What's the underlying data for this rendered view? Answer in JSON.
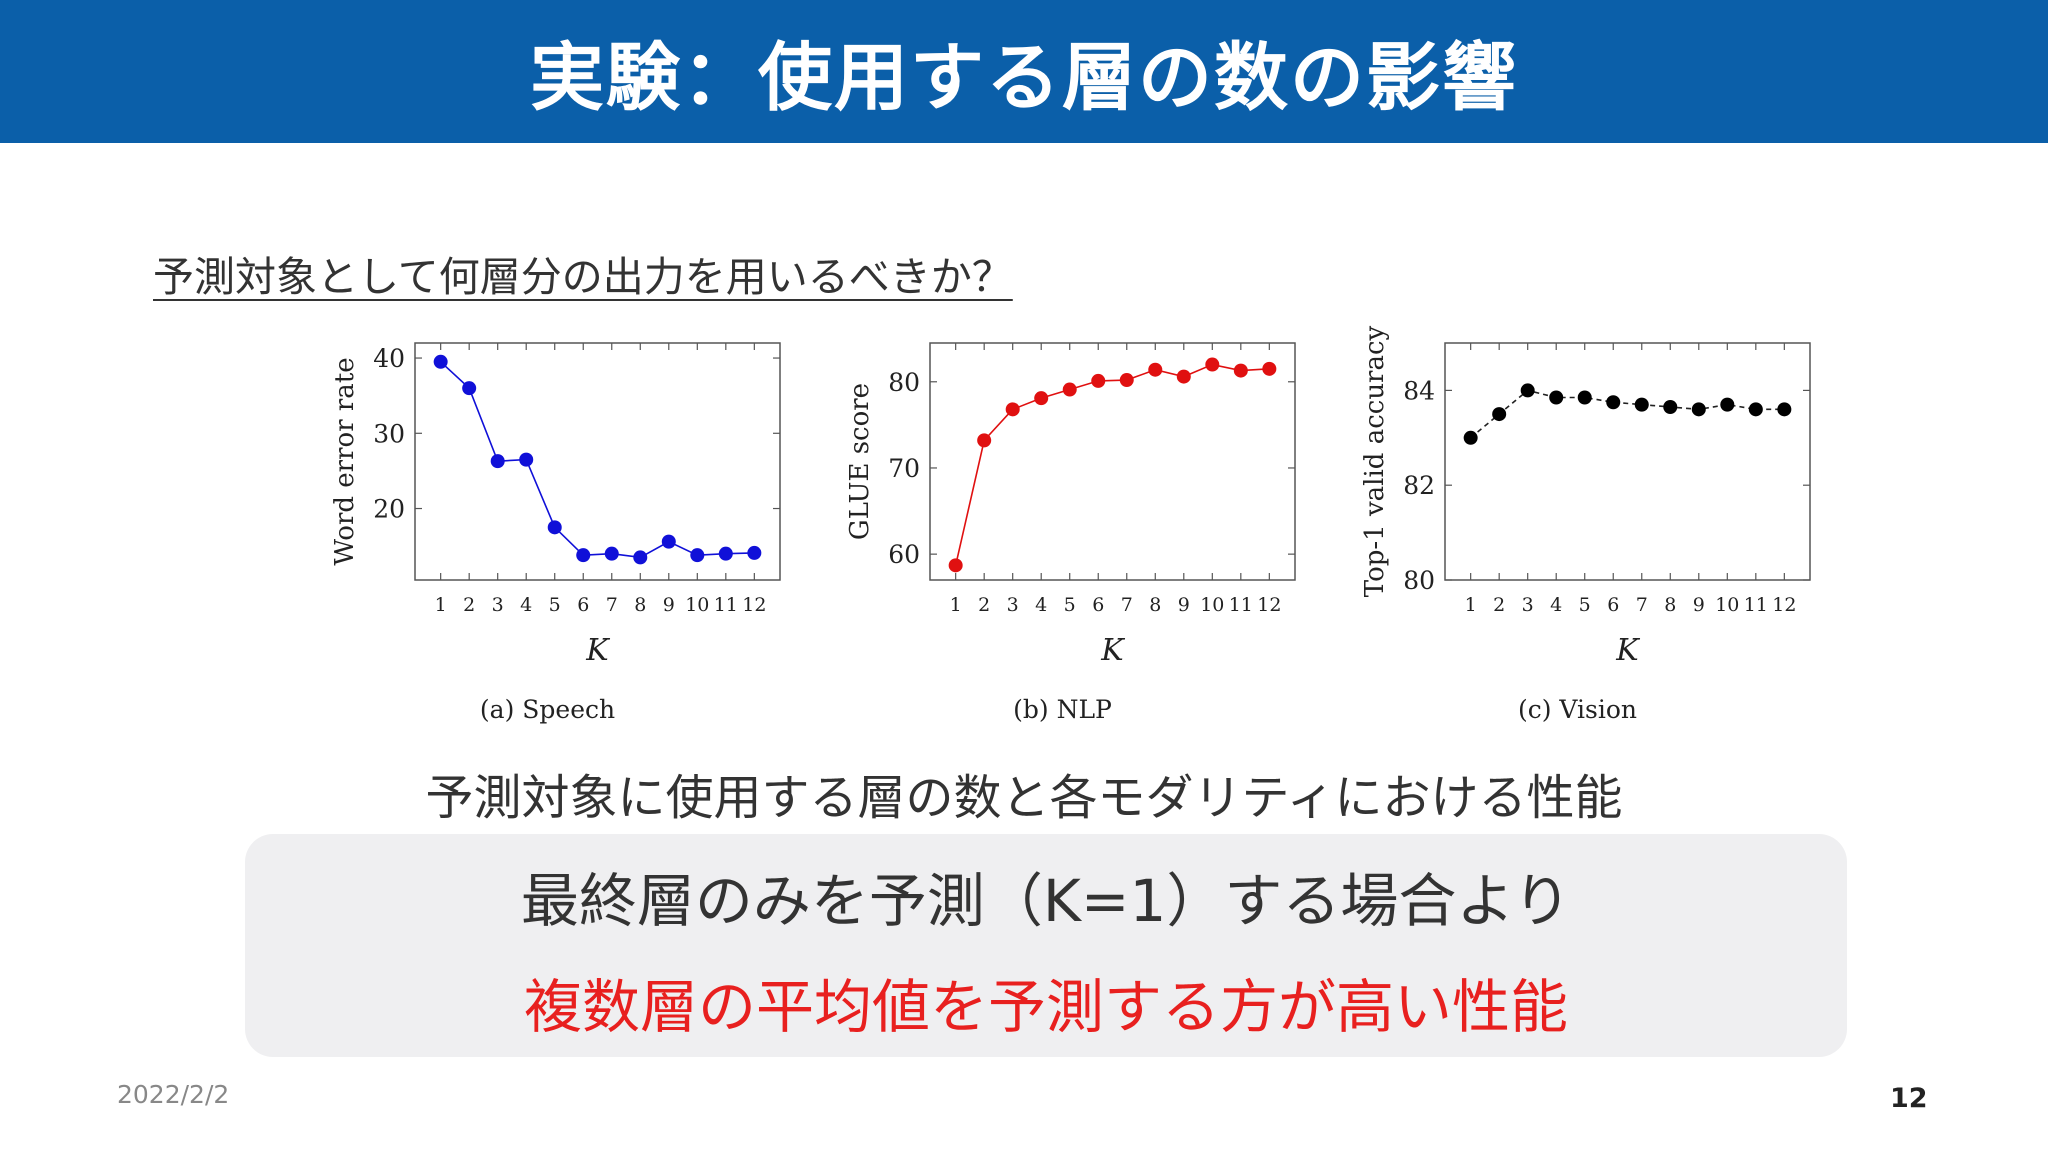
{
  "header": {
    "title": "実験：使用する層の数の影響"
  },
  "question": "予測対象として何層分の出力を用いるべきか？",
  "caption": "予測対象に使用する層の数と各モダリティにおける性能",
  "callout": {
    "line1": "最終層のみを予測（K=1）する場合より",
    "line2": "複数層の平均値を予測する方が高い性能"
  },
  "footer": {
    "date": "2022/2/2",
    "page_number": "12"
  },
  "colors": {
    "header_bg": "#0b5fa9",
    "speech": "#1010d8",
    "nlp": "#e01010",
    "vision": "#000000",
    "highlight": "#e8201f"
  },
  "chart_data": [
    {
      "type": "line",
      "subtitle": "(a) Speech",
      "xlabel": "K",
      "ylabel": "Word error rate",
      "x": [
        1,
        2,
        3,
        4,
        5,
        6,
        7,
        8,
        9,
        10,
        11,
        12
      ],
      "values": [
        39.5,
        36.0,
        26.3,
        26.5,
        17.5,
        13.8,
        14.0,
        13.5,
        15.6,
        13.8,
        14.0,
        14.1
      ],
      "ylim": [
        10.5,
        42
      ],
      "yticks": [
        20,
        30,
        40
      ],
      "color": "#1010d8",
      "line_style": "solid"
    },
    {
      "type": "line",
      "subtitle": "(b) NLP",
      "xlabel": "K",
      "ylabel": "GLUE score",
      "x": [
        1,
        2,
        3,
        4,
        5,
        6,
        7,
        8,
        9,
        10,
        11,
        12
      ],
      "values": [
        58.7,
        73.2,
        76.8,
        78.1,
        79.1,
        80.1,
        80.2,
        81.4,
        80.6,
        82.0,
        81.3,
        81.5
      ],
      "ylim": [
        57,
        84.5
      ],
      "yticks": [
        60,
        70,
        80
      ],
      "color": "#e01010",
      "line_style": "solid"
    },
    {
      "type": "line",
      "subtitle": "(c) Vision",
      "xlabel": "K",
      "ylabel": "Top-1 valid accuracy",
      "x": [
        1,
        2,
        3,
        4,
        5,
        6,
        7,
        8,
        9,
        10,
        11,
        12
      ],
      "values": [
        83.0,
        83.5,
        84.0,
        83.85,
        83.85,
        83.75,
        83.7,
        83.65,
        83.6,
        83.7,
        83.6,
        83.6
      ],
      "ylim": [
        80,
        85
      ],
      "yticks": [
        80,
        82,
        84
      ],
      "color": "#000000",
      "line_style": "dashed"
    }
  ]
}
